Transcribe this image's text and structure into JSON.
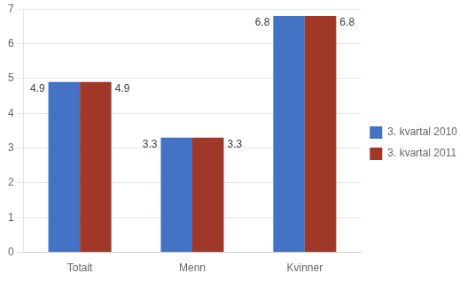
{
  "chart_data": {
    "type": "bar",
    "categories": [
      "Totalt",
      "Menn",
      "Kvinner"
    ],
    "series": [
      {
        "name": "3. kvartal 2010",
        "color": "#4472C4",
        "values": [
          4.9,
          3.3,
          6.8
        ]
      },
      {
        "name": "3. kvartal 2011",
        "color": "#A0382A",
        "values": [
          4.9,
          3.3,
          6.8
        ]
      }
    ],
    "ylim": [
      0,
      7
    ],
    "yticks": [
      0,
      1,
      2,
      3,
      4,
      5,
      6,
      7
    ],
    "grid": true,
    "legend": "right",
    "data_labels": true
  }
}
